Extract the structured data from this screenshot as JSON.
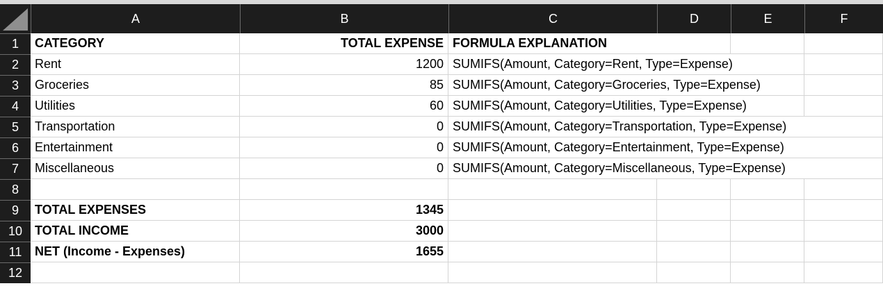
{
  "columns": [
    "A",
    "B",
    "C",
    "D",
    "E",
    "F"
  ],
  "rows": [
    "1",
    "2",
    "3",
    "4",
    "5",
    "6",
    "7",
    "8",
    "9",
    "10",
    "11",
    "12"
  ],
  "cells": {
    "r1": {
      "a": "CATEGORY",
      "b": "TOTAL EXPENSE",
      "c": "FORMULA EXPLANATION"
    },
    "r2": {
      "a": "Rent",
      "b": "1200",
      "c": "SUMIFS(Amount, Category=Rent, Type=Expense)"
    },
    "r3": {
      "a": "Groceries",
      "b": "85",
      "c": "SUMIFS(Amount, Category=Groceries, Type=Expense)"
    },
    "r4": {
      "a": "Utilities",
      "b": "60",
      "c": "SUMIFS(Amount, Category=Utilities, Type=Expense)"
    },
    "r5": {
      "a": "Transportation",
      "b": "0",
      "c": "SUMIFS(Amount, Category=Transportation, Type=Expense)"
    },
    "r6": {
      "a": "Entertainment",
      "b": "0",
      "c": "SUMIFS(Amount, Category=Entertainment, Type=Expense)"
    },
    "r7": {
      "a": "Miscellaneous",
      "b": "0",
      "c": "SUMIFS(Amount, Category=Miscellaneous, Type=Expense)"
    },
    "r9": {
      "a": "TOTAL EXPENSES",
      "b": "1345"
    },
    "r10": {
      "a": "TOTAL INCOME",
      "b": "3000"
    },
    "r11": {
      "a": "NET (Income - Expenses)",
      "b": "1655"
    }
  },
  "colors": {
    "header_bg": "#1d1d1d",
    "header_text": "#ffffff",
    "grid_line": "#d4d4d4"
  }
}
